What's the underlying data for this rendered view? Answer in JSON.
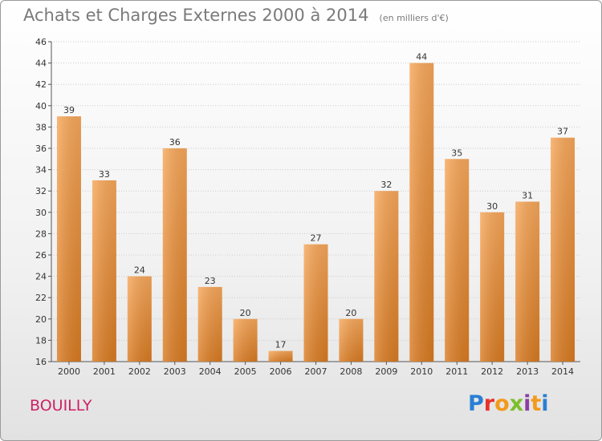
{
  "title": "Achats et Charges Externes 2000 à 2014",
  "subtitle": "(en milliers d'€)",
  "commune": "BOUILLY",
  "brand": "Proxiti",
  "brand_colors": [
    "#2a7fd4",
    "#e8312a",
    "#f39a1c",
    "#7cbf2a",
    "#8a3fa0",
    "#f39a1c",
    "#2a7fd4"
  ],
  "colors": {
    "bar_light": "#f7a75a",
    "bar_dark": "#d97b22",
    "axis": "#555555",
    "grid": "#cccccc"
  },
  "chart_data": {
    "type": "bar",
    "categories": [
      "2000",
      "2001",
      "2002",
      "2003",
      "2004",
      "2005",
      "2006",
      "2007",
      "2008",
      "2009",
      "2010",
      "2011",
      "2012",
      "2013",
      "2014"
    ],
    "values": [
      39,
      33,
      24,
      36,
      23,
      20,
      17,
      27,
      20,
      32,
      44,
      35,
      30,
      31,
      37
    ],
    "title": "Achats et Charges Externes 2000 à 2014",
    "subtitle": "(en milliers d'€)",
    "xlabel": "",
    "ylabel": "",
    "ylim": [
      16,
      46
    ],
    "yticks": [
      16,
      18,
      20,
      22,
      24,
      26,
      28,
      30,
      32,
      34,
      36,
      38,
      40,
      42,
      44,
      46
    ],
    "grid": true,
    "data_labels": true
  }
}
